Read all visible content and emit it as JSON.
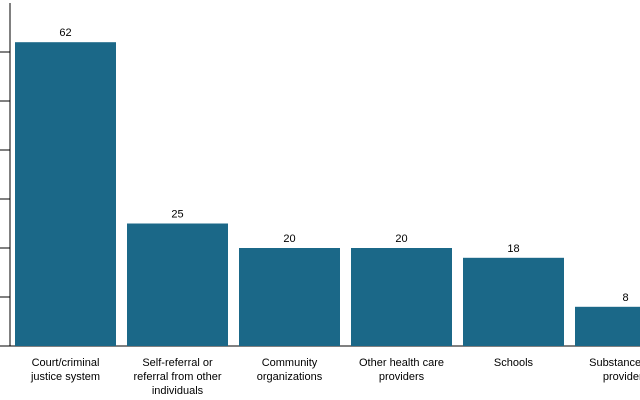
{
  "chart_data": {
    "type": "bar",
    "title": "",
    "xlabel": "",
    "ylabel": "",
    "ylim": [
      0,
      70
    ],
    "yticks": [
      10,
      20,
      30,
      40,
      50,
      60
    ],
    "grid": false,
    "bar_color": "#1b6888",
    "categories": [
      [
        "Court/criminal",
        "justice system"
      ],
      [
        "Self-referral or",
        "referral from other",
        "individuals"
      ],
      [
        "Community",
        "organizations"
      ],
      [
        "Other health care",
        "providers"
      ],
      [
        "Schools"
      ],
      [
        "Substance use",
        "providers"
      ]
    ],
    "values": [
      62,
      25,
      20,
      20,
      18,
      8
    ],
    "value_labels": [
      "62",
      "25",
      "20",
      "20",
      "18",
      "8"
    ]
  }
}
